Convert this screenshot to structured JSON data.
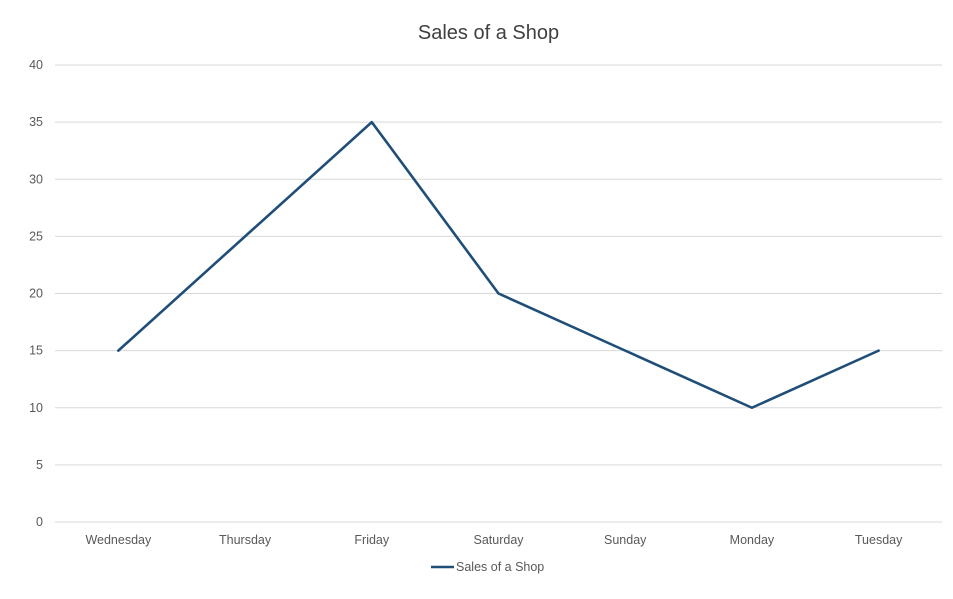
{
  "chart_data": {
    "type": "line",
    "title": "Sales of a Shop",
    "xlabel": "",
    "ylabel": "",
    "categories": [
      "Wednesday",
      "Thursday",
      "Friday",
      "Saturday",
      "Sunday",
      "Monday",
      "Tuesday"
    ],
    "series": [
      {
        "name": "Sales of a Shop",
        "values": [
          15,
          25,
          35,
          20,
          15,
          10,
          15
        ],
        "color": "#1f4e79"
      }
    ],
    "ylim": [
      0,
      40
    ],
    "yticks": [
      0,
      5,
      10,
      15,
      20,
      25,
      30,
      35,
      40
    ],
    "grid": true,
    "legend": "bottom-center"
  }
}
